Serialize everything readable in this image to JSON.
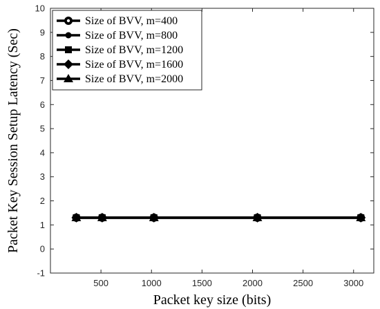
{
  "chart_data": {
    "type": "line",
    "xlabel": "Packet key size (bits)",
    "ylabel": "Packet Key Session Setup Latency (Sec)",
    "xlim": [
      0,
      3200
    ],
    "ylim": [
      -1,
      10
    ],
    "xticks": [
      500,
      1000,
      1500,
      2000,
      2500,
      3000
    ],
    "yticks": [
      -1,
      0,
      1,
      2,
      3,
      4,
      5,
      6,
      7,
      8,
      9,
      10
    ],
    "grid": false,
    "legend_position": "top-left",
    "x": [
      256,
      512,
      1024,
      2048,
      3072
    ],
    "series": [
      {
        "name": "Size of BVV, m=400",
        "marker": "circle",
        "color": "#000000",
        "values": [
          1.3,
          1.3,
          1.3,
          1.3,
          1.3
        ]
      },
      {
        "name": "Size of BVV, m=800",
        "marker": "dot",
        "color": "#000000",
        "values": [
          1.3,
          1.3,
          1.3,
          1.3,
          1.3
        ]
      },
      {
        "name": "Size of BVV, m=1200",
        "marker": "square",
        "color": "#000000",
        "values": [
          1.3,
          1.3,
          1.3,
          1.3,
          1.3
        ]
      },
      {
        "name": "Size of BVV, m=1600",
        "marker": "diamond",
        "color": "#000000",
        "values": [
          1.3,
          1.3,
          1.3,
          1.3,
          1.3
        ]
      },
      {
        "name": "Size of BVV, m=2000",
        "marker": "triangle",
        "color": "#000000",
        "values": [
          1.3,
          1.3,
          1.3,
          1.3,
          1.3
        ]
      }
    ]
  }
}
